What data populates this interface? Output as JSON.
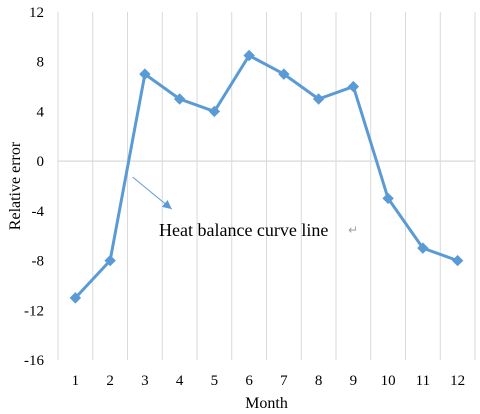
{
  "chart_data": {
    "type": "line",
    "title": "",
    "xlabel": "Month",
    "ylabel": "Relative error",
    "ylim": [
      -16,
      12
    ],
    "ytick_step": 4,
    "grid": "vertical",
    "categories": [
      "1",
      "2",
      "3",
      "4",
      "5",
      "6",
      "7",
      "8",
      "9",
      "10",
      "11",
      "12"
    ],
    "series": [
      {
        "values": [
          -11,
          -8,
          7,
          5,
          4,
          8.5,
          7,
          5,
          6,
          -3,
          -7,
          -8
        ],
        "color": "#5b9bd5",
        "marker": "diamond"
      }
    ],
    "annotation": {
      "text": "Heat balance curve line",
      "return_mark": "↵",
      "points_to_month": 2.65,
      "points_to_value": 0
    }
  }
}
